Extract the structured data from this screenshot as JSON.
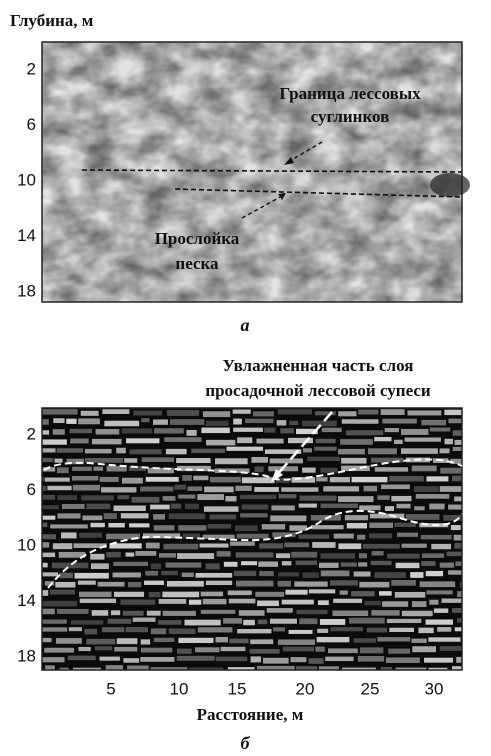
{
  "panel_a": {
    "y_label": "Глубина, м",
    "yticks": [
      "2",
      "6",
      "10",
      "14",
      "18"
    ],
    "annotation_top": [
      "Граница лессовых",
      "суглинков"
    ],
    "annotation_bottom": [
      "Прослойка",
      "песка"
    ],
    "label": "а"
  },
  "panel_b": {
    "title": [
      "Увлажненная часть слоя",
      "просадочной лессовой супеси"
    ],
    "yticks": [
      "2",
      "6",
      "10",
      "14",
      "18"
    ],
    "xticks": [
      "5",
      "10",
      "15",
      "20",
      "25",
      "30"
    ],
    "x_label": "Расстояние, м",
    "label": "б"
  }
}
